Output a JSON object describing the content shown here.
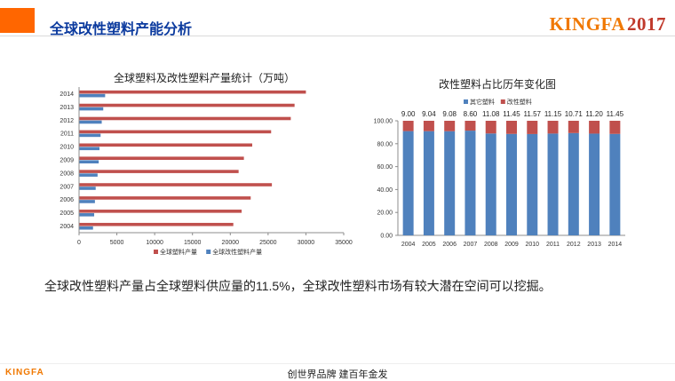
{
  "header": {
    "title": "全球改性塑料产能分析",
    "brand": "KINGFA",
    "brand_year": "2017",
    "accent_color": "#ff6600",
    "title_color": "#0b3a9e"
  },
  "summary_text": "全球改性塑料产量占全球塑料供应量的11.5%，全球改性塑料市场有较大潜在空间可以挖掘。",
  "footer": {
    "logo": "KINGFA",
    "slogan": "创世界品牌 建百年金发"
  },
  "chart_data": [
    {
      "type": "bar",
      "orientation": "horizontal",
      "title": "全球塑料及改性塑料产量统计（万吨）",
      "categories": [
        "2004",
        "2005",
        "2006",
        "2007",
        "2008",
        "2009",
        "2010",
        "2011",
        "2012",
        "2013",
        "2014"
      ],
      "series": [
        {
          "name": "全球塑料产量",
          "color": "#c0504d",
          "values": [
            20400,
            21500,
            22700,
            25500,
            21100,
            21800,
            22900,
            25400,
            28000,
            28500,
            30000
          ]
        },
        {
          "name": "全球改性塑料产量",
          "color": "#4f81bd",
          "values": [
            1850,
            2000,
            2100,
            2200,
            2450,
            2600,
            2700,
            2850,
            3000,
            3200,
            3450
          ]
        }
      ],
      "xlim": [
        0,
        35000
      ],
      "xticks": [
        "0",
        "5000",
        "10000",
        "15000",
        "20000",
        "25000",
        "30000",
        "35000"
      ],
      "legend": "bottom"
    },
    {
      "type": "bar",
      "stacked": true,
      "title": "改性塑料占比历年变化图",
      "categories": [
        "2004",
        "2005",
        "2006",
        "2007",
        "2008",
        "2009",
        "2010",
        "2011",
        "2012",
        "2013",
        "2014"
      ],
      "series": [
        {
          "name": "其它塑料",
          "color": "#4f81bd",
          "values": [
            91.0,
            90.96,
            90.92,
            91.4,
            88.92,
            88.55,
            88.43,
            88.85,
            89.29,
            88.8,
            88.55
          ]
        },
        {
          "name": "改性塑料",
          "color": "#c0504d",
          "values": [
            9.0,
            9.04,
            9.08,
            8.6,
            11.08,
            11.45,
            11.57,
            11.15,
            10.71,
            11.2,
            11.45
          ]
        }
      ],
      "data_labels": [
        "9.00",
        "9.04",
        "9.08",
        "8.60",
        "11.08",
        "11.45",
        "11.57",
        "11.15",
        "10.71",
        "11.20",
        "11.45"
      ],
      "ylim": [
        0,
        100
      ],
      "yticks": [
        "0.00",
        "20.00",
        "40.00",
        "60.00",
        "80.00",
        "100.00"
      ],
      "legend": "top"
    }
  ]
}
